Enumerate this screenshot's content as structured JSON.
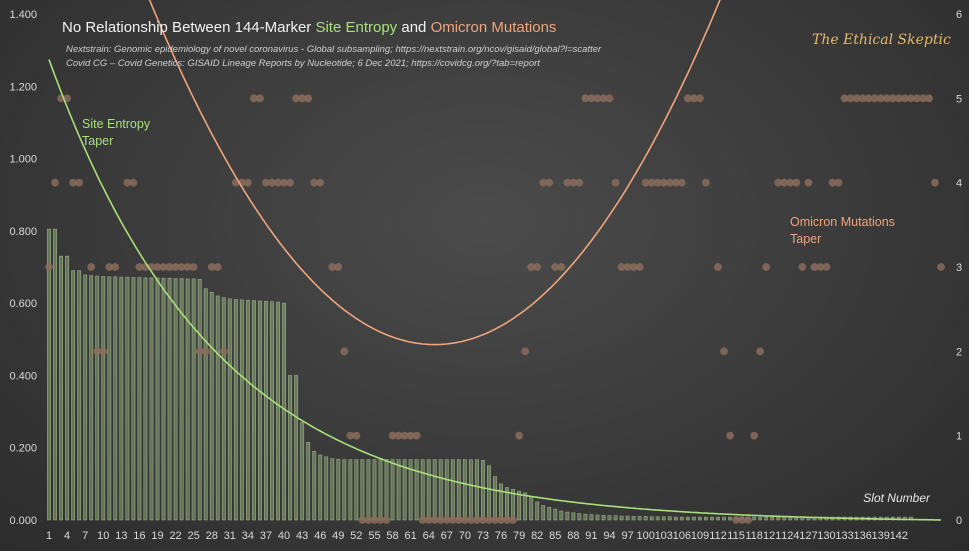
{
  "chart_data": {
    "type": "bar",
    "title_parts": [
      {
        "text": "No Relationship Between 144-Marker ",
        "color": "#f2f2f2"
      },
      {
        "text": "Site Entropy",
        "color": "#a8e07a"
      },
      {
        "text": " and ",
        "color": "#f2f2f2"
      },
      {
        "text": "Omicron Mutations",
        "color": "#f0a57c"
      }
    ],
    "source_lines": [
      "Nextstrain: Genomic epidemiology of novel coronavirus - Global subsampling; https://nextstrain.org/ncov/gisaid/global?l=scatter",
      "Covid CG – Covid Genetics: GISAID Lineage Reports by Nucleotide; 6 Dec 2021; https://covidcg.org/?tab=report"
    ],
    "brand": "The Ethical Skeptic",
    "xlabel": "Slot Number",
    "x_ticks": [
      "1",
      "4",
      "7",
      "10",
      "13",
      "16",
      "19",
      "22",
      "25",
      "28",
      "31",
      "34",
      "37",
      "40",
      "43",
      "46",
      "49",
      "52",
      "55",
      "58",
      "61",
      "64",
      "67",
      "70",
      "73",
      "76",
      "79",
      "82",
      "85",
      "88",
      "91",
      "94",
      "97",
      "100",
      "103",
      "106",
      "109",
      "112",
      "115",
      "118",
      "121",
      "124",
      "127",
      "130",
      "133",
      "136",
      "139",
      "142"
    ],
    "y_left": {
      "ticks": [
        "0.000",
        "0.200",
        "0.400",
        "0.600",
        "0.800",
        "1.000",
        "1.200",
        "1.400"
      ],
      "range": [
        0,
        1.4
      ]
    },
    "y_right": {
      "ticks": [
        "0",
        "1",
        "2",
        "3",
        "4",
        "5",
        "6"
      ],
      "range": [
        0,
        6
      ]
    },
    "series": [
      {
        "name": "Site Entropy",
        "axis": "left",
        "color": "#9fbf80",
        "values": [
          0.805,
          0.805,
          0.73,
          0.73,
          0.69,
          0.69,
          0.678,
          0.676,
          0.675,
          0.674,
          0.673,
          0.673,
          0.672,
          0.672,
          0.671,
          0.671,
          0.67,
          0.67,
          0.67,
          0.669,
          0.669,
          0.668,
          0.668,
          0.667,
          0.667,
          0.666,
          0.64,
          0.63,
          0.62,
          0.615,
          0.612,
          0.61,
          0.609,
          0.608,
          0.607,
          0.606,
          0.605,
          0.604,
          0.603,
          0.6,
          0.4,
          0.4,
          0.27,
          0.215,
          0.19,
          0.18,
          0.175,
          0.17,
          0.168,
          0.167,
          0.167,
          0.167,
          0.167,
          0.167,
          0.167,
          0.167,
          0.167,
          0.167,
          0.167,
          0.167,
          0.167,
          0.167,
          0.167,
          0.167,
          0.167,
          0.167,
          0.167,
          0.167,
          0.167,
          0.167,
          0.167,
          0.167,
          0.165,
          0.15,
          0.12,
          0.1,
          0.09,
          0.085,
          0.08,
          0.075,
          0.065,
          0.05,
          0.04,
          0.035,
          0.03,
          0.025,
          0.022,
          0.02,
          0.018,
          0.016,
          0.015,
          0.014,
          0.013,
          0.012,
          0.012,
          0.011,
          0.011,
          0.01,
          0.01,
          0.01,
          0.009,
          0.009,
          0.009,
          0.009,
          0.008,
          0.008,
          0.008,
          0.008,
          0.008,
          0.008,
          0.008,
          0.008,
          0.008,
          0.008,
          0.008,
          0.008,
          0.008,
          0.008,
          0.008,
          0.008,
          0.008,
          0.008,
          0.008,
          0.008,
          0.008,
          0.008,
          0.008,
          0.008,
          0.008,
          0.008,
          0.008,
          0.008,
          0.008,
          0.008,
          0.008,
          0.008,
          0.008,
          0.008,
          0.008,
          0.008,
          0.008,
          0.008,
          0.008,
          0.008
        ]
      },
      {
        "name": "Omicron Mutations",
        "axis": "right",
        "color": "#8a6c5c",
        "points": [
          [
            1,
            3
          ],
          [
            2,
            4
          ],
          [
            3,
            5
          ],
          [
            4,
            5
          ],
          [
            5,
            4
          ],
          [
            6,
            4
          ],
          [
            8,
            3
          ],
          [
            9,
            2
          ],
          [
            10,
            2
          ],
          [
            11,
            3
          ],
          [
            12,
            3
          ],
          [
            14,
            4
          ],
          [
            15,
            4
          ],
          [
            16,
            3
          ],
          [
            17,
            3
          ],
          [
            18,
            3
          ],
          [
            19,
            3
          ],
          [
            20,
            3
          ],
          [
            21,
            3
          ],
          [
            22,
            3
          ],
          [
            23,
            3
          ],
          [
            24,
            3
          ],
          [
            25,
            3
          ],
          [
            26,
            2
          ],
          [
            27,
            2
          ],
          [
            28,
            3
          ],
          [
            29,
            3
          ],
          [
            30,
            2
          ],
          [
            32,
            4
          ],
          [
            33,
            4
          ],
          [
            34,
            4
          ],
          [
            35,
            5
          ],
          [
            36,
            5
          ],
          [
            37,
            4
          ],
          [
            38,
            4
          ],
          [
            39,
            4
          ],
          [
            40,
            4
          ],
          [
            41,
            4
          ],
          [
            42,
            5
          ],
          [
            43,
            5
          ],
          [
            44,
            5
          ],
          [
            45,
            4
          ],
          [
            46,
            4
          ],
          [
            48,
            3
          ],
          [
            49,
            3
          ],
          [
            50,
            2
          ],
          [
            51,
            1
          ],
          [
            52,
            1
          ],
          [
            53,
            0
          ],
          [
            54,
            0
          ],
          [
            55,
            0
          ],
          [
            56,
            0
          ],
          [
            57,
            0
          ],
          [
            58,
            1
          ],
          [
            59,
            1
          ],
          [
            60,
            1
          ],
          [
            61,
            1
          ],
          [
            62,
            1
          ],
          [
            63,
            0
          ],
          [
            64,
            0
          ],
          [
            65,
            0
          ],
          [
            66,
            0
          ],
          [
            67,
            0
          ],
          [
            68,
            0
          ],
          [
            69,
            0
          ],
          [
            70,
            0
          ],
          [
            71,
            0
          ],
          [
            72,
            0
          ],
          [
            73,
            0
          ],
          [
            74,
            0
          ],
          [
            75,
            0
          ],
          [
            76,
            0
          ],
          [
            77,
            0
          ],
          [
            78,
            0
          ],
          [
            79,
            1
          ],
          [
            80,
            2
          ],
          [
            81,
            3
          ],
          [
            82,
            3
          ],
          [
            83,
            4
          ],
          [
            84,
            4
          ],
          [
            85,
            3
          ],
          [
            86,
            3
          ],
          [
            87,
            4
          ],
          [
            88,
            4
          ],
          [
            89,
            4
          ],
          [
            90,
            5
          ],
          [
            91,
            5
          ],
          [
            92,
            5
          ],
          [
            93,
            5
          ],
          [
            94,
            5
          ],
          [
            95,
            4
          ],
          [
            96,
            3
          ],
          [
            97,
            3
          ],
          [
            98,
            3
          ],
          [
            99,
            3
          ],
          [
            100,
            4
          ],
          [
            101,
            4
          ],
          [
            102,
            4
          ],
          [
            103,
            4
          ],
          [
            104,
            4
          ],
          [
            105,
            4
          ],
          [
            106,
            4
          ],
          [
            107,
            5
          ],
          [
            108,
            5
          ],
          [
            109,
            5
          ],
          [
            110,
            4
          ],
          [
            112,
            3
          ],
          [
            113,
            2
          ],
          [
            114,
            1
          ],
          [
            115,
            0
          ],
          [
            116,
            0
          ],
          [
            117,
            0
          ],
          [
            118,
            1
          ],
          [
            119,
            2
          ],
          [
            120,
            3
          ],
          [
            122,
            4
          ],
          [
            123,
            4
          ],
          [
            124,
            4
          ],
          [
            125,
            4
          ],
          [
            126,
            3
          ],
          [
            127,
            4
          ],
          [
            128,
            3
          ],
          [
            129,
            3
          ],
          [
            130,
            3
          ],
          [
            131,
            4
          ],
          [
            132,
            4
          ],
          [
            133,
            5
          ],
          [
            134,
            5
          ],
          [
            135,
            5
          ],
          [
            136,
            5
          ],
          [
            137,
            5
          ],
          [
            138,
            5
          ],
          [
            139,
            5
          ],
          [
            140,
            5
          ],
          [
            141,
            5
          ],
          [
            142,
            5
          ],
          [
            143,
            5
          ],
          [
            144,
            5
          ],
          [
            145,
            5
          ],
          [
            146,
            5
          ],
          [
            147,
            5
          ],
          [
            148,
            4
          ],
          [
            149,
            3
          ]
        ]
      },
      {
        "name": "Site Entropy Taper",
        "axis": "left",
        "color": "#9fe07a",
        "type": "line"
      },
      {
        "name": "Omicron Mutations Taper",
        "axis": "right",
        "color": "#f0a57c",
        "type": "line"
      }
    ],
    "annotations": {
      "entropy_taper": [
        "Site Entropy",
        "Taper"
      ],
      "omicron_taper": [
        "Omicron Mutations",
        "Taper"
      ]
    },
    "grid": false,
    "legend": "none"
  }
}
